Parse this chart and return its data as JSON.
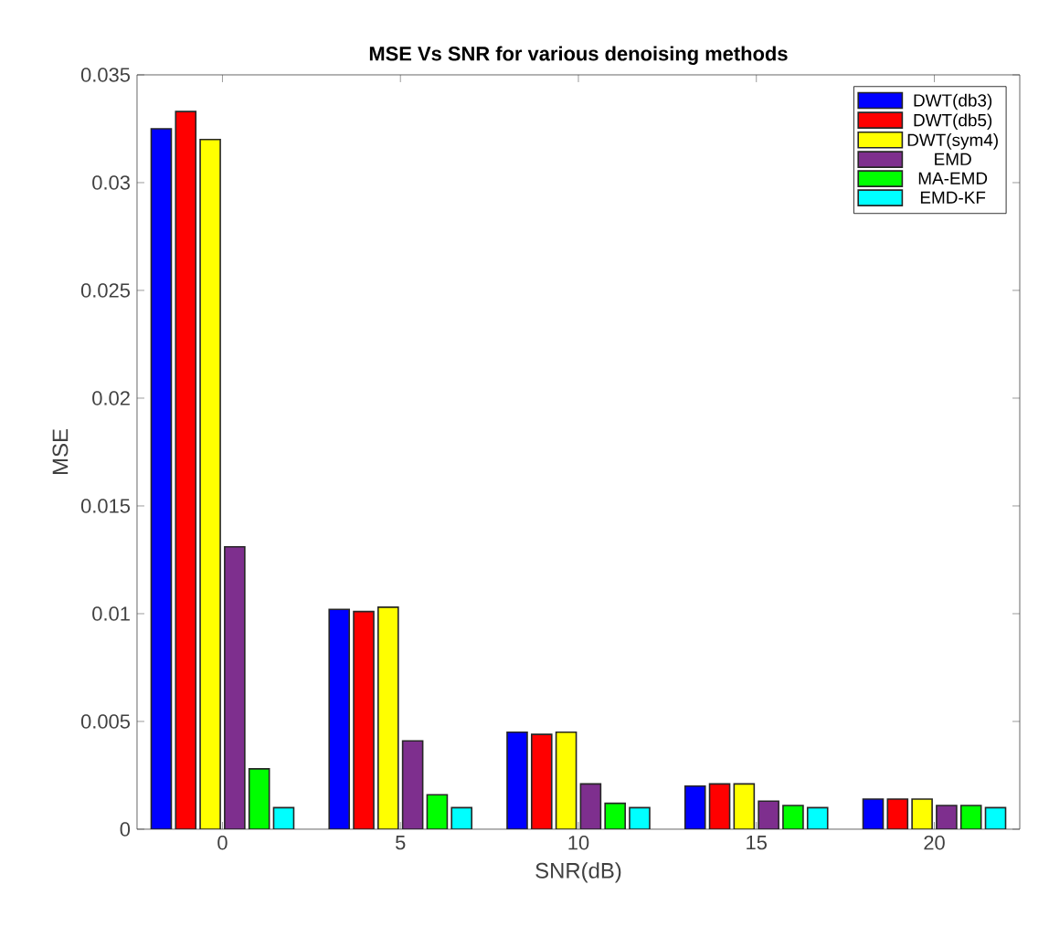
{
  "chart_data": {
    "type": "bar",
    "title": "MSE Vs SNR for various denoising methods",
    "xlabel": "SNR(dB)",
    "ylabel": "MSE",
    "categories": [
      "0",
      "5",
      "10",
      "15",
      "20"
    ],
    "series": [
      {
        "name": "DWT(db3)",
        "color": "#0000ff",
        "values": [
          0.0325,
          0.0102,
          0.0045,
          0.002,
          0.0014
        ]
      },
      {
        "name": "DWT(db5)",
        "color": "#ff0000",
        "values": [
          0.0333,
          0.0101,
          0.0044,
          0.0021,
          0.0014
        ]
      },
      {
        "name": "DWT(sym4)",
        "color": "#ffff00",
        "values": [
          0.032,
          0.0103,
          0.0045,
          0.0021,
          0.0014
        ]
      },
      {
        "name": "EMD",
        "color": "#7e2f8e",
        "values": [
          0.0131,
          0.0041,
          0.0021,
          0.0013,
          0.0011
        ]
      },
      {
        "name": "MA-EMD",
        "color": "#00ff00",
        "values": [
          0.0028,
          0.0016,
          0.0012,
          0.0011,
          0.0011
        ]
      },
      {
        "name": "EMD-KF",
        "color": "#00ffff",
        "values": [
          0.001,
          0.001,
          0.001,
          0.001,
          0.001
        ]
      }
    ],
    "ylim": [
      0,
      0.035
    ],
    "yticks": [
      0,
      0.005,
      0.01,
      0.015,
      0.02,
      0.025,
      0.03,
      0.035
    ],
    "legend": "top right",
    "grid": false
  }
}
